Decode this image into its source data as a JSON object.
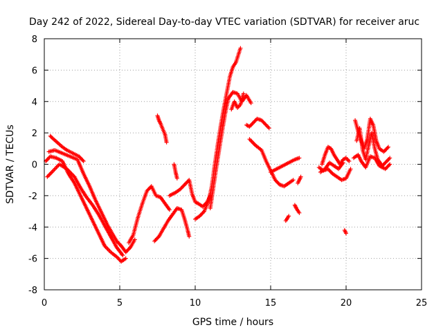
{
  "chart_data": {
    "type": "scatter",
    "title": "Day 242 of 2022, Sidereal Day-to-day VTEC variation (SDTVAR) for receiver aruc",
    "xlabel": "GPS time / hours",
    "ylabel": "SDTVAR / TECUs",
    "xlim": [
      0,
      25
    ],
    "ylim": [
      -8,
      8
    ],
    "xticks": [
      0,
      5,
      10,
      15,
      20,
      25
    ],
    "yticks": [
      -8,
      -6,
      -4,
      -2,
      0,
      2,
      4,
      6,
      8
    ],
    "grid": true,
    "marker": "+",
    "color": "#ff0000",
    "segments": [
      {
        "name": "trace-a",
        "points": [
          [
            0.1,
            0.2
          ],
          [
            0.4,
            0.5
          ],
          [
            0.8,
            0.4
          ],
          [
            1.2,
            0.2
          ],
          [
            1.6,
            -0.6
          ],
          [
            2.0,
            -1.2
          ],
          [
            2.4,
            -2.0
          ],
          [
            2.8,
            -2.8
          ],
          [
            3.2,
            -3.6
          ],
          [
            3.6,
            -4.4
          ],
          [
            4.0,
            -5.2
          ],
          [
            4.4,
            -5.6
          ],
          [
            4.8,
            -5.9
          ],
          [
            5.1,
            -6.2
          ],
          [
            5.4,
            -6.0
          ]
        ]
      },
      {
        "name": "trace-b",
        "points": [
          [
            0.3,
            0.8
          ],
          [
            0.7,
            0.9
          ],
          [
            1.2,
            0.7
          ],
          [
            1.7,
            0.5
          ],
          [
            2.2,
            0.3
          ],
          [
            2.6,
            -0.6
          ],
          [
            3.0,
            -1.4
          ],
          [
            3.4,
            -2.3
          ],
          [
            3.8,
            -3.1
          ],
          [
            4.2,
            -3.9
          ],
          [
            4.5,
            -4.4
          ],
          [
            4.8,
            -4.9
          ],
          [
            5.1,
            -5.2
          ],
          [
            5.4,
            -5.6
          ],
          [
            5.7,
            -5.3
          ],
          [
            6.0,
            -4.8
          ]
        ]
      },
      {
        "name": "trace-c",
        "points": [
          [
            0.2,
            -0.8
          ],
          [
            0.6,
            -0.4
          ],
          [
            1.0,
            0.0
          ],
          [
            1.5,
            -0.3
          ],
          [
            2.0,
            -0.8
          ],
          [
            2.4,
            -1.5
          ],
          [
            2.8,
            -2.1
          ],
          [
            3.2,
            -2.6
          ],
          [
            3.6,
            -3.2
          ],
          [
            4.0,
            -3.9
          ],
          [
            4.4,
            -4.6
          ],
          [
            4.8,
            -5.3
          ],
          [
            5.2,
            -5.8
          ]
        ]
      },
      {
        "name": "trace-d",
        "points": [
          [
            0.4,
            1.8
          ],
          [
            0.5,
            1.7
          ],
          [
            1.2,
            1.1
          ],
          [
            1.5,
            0.9
          ],
          [
            2.3,
            0.5
          ],
          [
            2.6,
            0.2
          ]
        ]
      },
      {
        "name": "trace-e",
        "points": [
          [
            5.6,
            -5.0
          ],
          [
            5.9,
            -4.5
          ],
          [
            6.2,
            -3.4
          ],
          [
            6.5,
            -2.5
          ],
          [
            6.8,
            -1.7
          ],
          [
            7.1,
            -1.4
          ],
          [
            7.4,
            -2.0
          ],
          [
            7.7,
            -2.1
          ],
          [
            8.0,
            -2.5
          ],
          [
            8.3,
            -2.9
          ]
        ]
      },
      {
        "name": "trace-f",
        "points": [
          [
            7.3,
            -4.9
          ],
          [
            7.6,
            -4.6
          ],
          [
            7.9,
            -4.1
          ],
          [
            8.2,
            -3.6
          ],
          [
            8.5,
            -3.2
          ],
          [
            8.8,
            -2.8
          ],
          [
            9.1,
            -2.9
          ],
          [
            9.3,
            -3.5
          ],
          [
            9.5,
            -4.2
          ],
          [
            9.6,
            -4.6
          ]
        ]
      },
      {
        "name": "trace-g",
        "points": [
          [
            7.5,
            3.1
          ],
          [
            7.6,
            2.8
          ],
          [
            7.7,
            2.6
          ],
          [
            8.0,
            1.9
          ],
          [
            8.1,
            1.4
          ]
        ]
      },
      {
        "name": "trace-h",
        "points": [
          [
            8.3,
            -2.0
          ],
          [
            8.7,
            -1.8
          ],
          [
            9.0,
            -1.6
          ],
          [
            9.3,
            -1.3
          ],
          [
            9.6,
            -1.0
          ],
          [
            9.8,
            -1.9
          ],
          [
            10.0,
            -2.4
          ],
          [
            10.2,
            -2.5
          ],
          [
            10.5,
            -2.7
          ],
          [
            10.8,
            -2.4
          ],
          [
            11.0,
            -2.0
          ]
        ]
      },
      {
        "name": "trace-i",
        "points": [
          [
            8.6,
            0.0
          ],
          [
            8.7,
            -0.5
          ],
          [
            8.8,
            -0.9
          ]
        ]
      },
      {
        "name": "trace-j",
        "points": [
          [
            10.0,
            -3.5
          ],
          [
            10.3,
            -3.3
          ],
          [
            10.6,
            -3.0
          ],
          [
            10.9,
            -2.3
          ],
          [
            11.1,
            -1.4
          ],
          [
            11.3,
            0.0
          ],
          [
            11.5,
            1.3
          ],
          [
            11.7,
            2.5
          ],
          [
            11.9,
            3.6
          ],
          [
            12.1,
            4.6
          ],
          [
            12.3,
            5.6
          ],
          [
            12.5,
            6.2
          ],
          [
            12.7,
            6.5
          ],
          [
            13.0,
            7.4
          ]
        ]
      },
      {
        "name": "trace-k",
        "points": [
          [
            11.0,
            -2.8
          ],
          [
            11.2,
            -1.5
          ],
          [
            11.4,
            -0.2
          ],
          [
            11.6,
            1.0
          ],
          [
            11.8,
            2.2
          ],
          [
            12.0,
            3.3
          ],
          [
            12.2,
            4.2
          ],
          [
            12.5,
            4.6
          ],
          [
            12.8,
            4.5
          ],
          [
            13.1,
            4.0
          ],
          [
            13.4,
            4.4
          ],
          [
            13.7,
            3.9
          ]
        ]
      },
      {
        "name": "trace-l",
        "points": [
          [
            12.4,
            3.5
          ],
          [
            12.6,
            4.0
          ],
          [
            12.8,
            3.6
          ],
          [
            13.0,
            3.8
          ],
          [
            13.2,
            4.5
          ]
        ]
      },
      {
        "name": "trace-m",
        "points": [
          [
            13.4,
            2.5
          ],
          [
            13.6,
            2.4
          ],
          [
            14.1,
            2.9
          ],
          [
            14.4,
            2.8
          ],
          [
            14.7,
            2.5
          ],
          [
            14.9,
            2.3
          ]
        ]
      },
      {
        "name": "trace-n",
        "points": [
          [
            13.6,
            1.6
          ],
          [
            14.0,
            1.2
          ],
          [
            14.4,
            0.9
          ],
          [
            14.7,
            0.2
          ],
          [
            15.0,
            -0.4
          ],
          [
            15.3,
            -1.0
          ],
          [
            15.6,
            -1.3
          ],
          [
            15.9,
            -1.4
          ],
          [
            16.2,
            -1.2
          ],
          [
            16.5,
            -1.0
          ]
        ]
      },
      {
        "name": "trace-o",
        "points": [
          [
            15.0,
            -0.5
          ],
          [
            15.4,
            -0.3
          ],
          [
            15.8,
            -0.1
          ],
          [
            16.2,
            0.1
          ],
          [
            16.6,
            0.3
          ],
          [
            16.9,
            0.4
          ]
        ]
      },
      {
        "name": "trace-p",
        "points": [
          [
            16.0,
            -3.6
          ],
          [
            16.2,
            -3.3
          ]
        ]
      },
      {
        "name": "trace-q",
        "points": [
          [
            16.6,
            -2.6
          ],
          [
            16.7,
            -2.8
          ],
          [
            16.9,
            -3.1
          ]
        ]
      },
      {
        "name": "trace-r",
        "points": [
          [
            16.8,
            -1.2
          ],
          [
            17.0,
            -0.8
          ]
        ]
      },
      {
        "name": "trace-s",
        "points": [
          [
            18.2,
            -0.2
          ],
          [
            18.5,
            -0.4
          ],
          [
            18.8,
            -0.3
          ],
          [
            19.1,
            -0.6
          ],
          [
            19.4,
            -0.8
          ],
          [
            19.7,
            -1.0
          ],
          [
            20.0,
            -0.9
          ],
          [
            20.3,
            -0.3
          ]
        ]
      },
      {
        "name": "trace-t",
        "points": [
          [
            18.4,
            0.0
          ],
          [
            18.6,
            0.6
          ],
          [
            18.8,
            1.1
          ],
          [
            19.0,
            1.0
          ],
          [
            19.2,
            0.6
          ],
          [
            19.4,
            0.3
          ],
          [
            19.6,
            0.0
          ],
          [
            19.8,
            0.3
          ],
          [
            20.0,
            0.4
          ],
          [
            20.2,
            0.2
          ]
        ]
      },
      {
        "name": "trace-u",
        "points": [
          [
            18.3,
            -0.5
          ],
          [
            18.6,
            -0.3
          ],
          [
            18.9,
            0.1
          ],
          [
            19.2,
            -0.1
          ],
          [
            19.5,
            -0.3
          ],
          [
            19.8,
            0.1
          ]
        ]
      },
      {
        "name": "trace-v",
        "points": [
          [
            19.9,
            -4.2
          ],
          [
            20.0,
            -4.4
          ]
        ]
      },
      {
        "name": "trace-w",
        "points": [
          [
            20.6,
            2.8
          ],
          [
            20.8,
            2.1
          ],
          [
            21.0,
            1.5
          ],
          [
            21.2,
            1.0
          ],
          [
            21.4,
            1.6
          ],
          [
            21.6,
            2.9
          ],
          [
            21.8,
            2.5
          ],
          [
            22.0,
            1.5
          ],
          [
            22.2,
            1.0
          ],
          [
            22.5,
            0.8
          ],
          [
            22.8,
            1.1
          ]
        ]
      },
      {
        "name": "trace-x",
        "points": [
          [
            20.7,
            1.5
          ],
          [
            20.9,
            2.3
          ],
          [
            21.1,
            0.9
          ],
          [
            21.3,
            0.3
          ],
          [
            21.5,
            1.2
          ],
          [
            21.7,
            2.0
          ],
          [
            21.9,
            1.0
          ],
          [
            22.1,
            0.3
          ],
          [
            22.4,
            -0.1
          ],
          [
            22.7,
            0.2
          ],
          [
            22.9,
            0.4
          ]
        ]
      },
      {
        "name": "trace-y",
        "points": [
          [
            20.5,
            0.4
          ],
          [
            20.8,
            0.6
          ],
          [
            21.0,
            0.2
          ],
          [
            21.3,
            -0.2
          ],
          [
            21.6,
            0.5
          ],
          [
            21.9,
            0.4
          ],
          [
            22.2,
            -0.1
          ],
          [
            22.6,
            -0.3
          ],
          [
            22.9,
            0.0
          ]
        ]
      }
    ]
  }
}
